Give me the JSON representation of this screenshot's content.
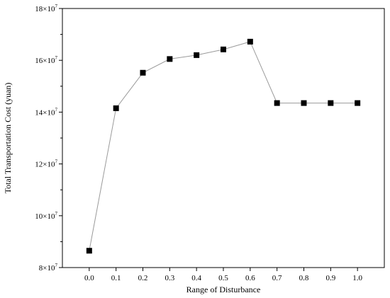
{
  "chart_data": {
    "type": "line",
    "xlabel": "Range of Disturbance",
    "ylabel": "Total Transportation Cost (yuan)",
    "x": [
      0.0,
      0.1,
      0.2,
      0.3,
      0.4,
      0.5,
      0.6,
      0.7,
      0.8,
      0.9,
      1.0
    ],
    "x_tick_labels": [
      "0.0",
      "0.1",
      "0.2",
      "0.3",
      "0.4",
      "0.5",
      "0.6",
      "0.7",
      "0.8",
      "0.9",
      "1.0"
    ],
    "xlim": [
      -0.1,
      1.1
    ],
    "ylim": [
      80000000.0,
      180000000.0
    ],
    "y_ticks": [
      {
        "value": 80000000,
        "mantissa": "8×10",
        "exponent": "7"
      },
      {
        "value": 100000000,
        "mantissa": "10×10",
        "exponent": "7"
      },
      {
        "value": 120000000,
        "mantissa": "12×10",
        "exponent": "7"
      },
      {
        "value": 140000000,
        "mantissa": "14×10",
        "exponent": "7"
      },
      {
        "value": 160000000,
        "mantissa": "16×10",
        "exponent": "7"
      },
      {
        "value": 180000000,
        "mantissa": "18×10",
        "exponent": "7"
      }
    ],
    "series": [
      {
        "values": [
          86500000,
          141500000,
          155200000,
          160500000,
          162000000,
          164200000,
          167200000,
          143500000,
          143500000,
          143500000,
          143500000
        ]
      }
    ],
    "grid": false,
    "line_color": "#9a9a9a",
    "marker_color": "#000000",
    "marker": "square"
  }
}
